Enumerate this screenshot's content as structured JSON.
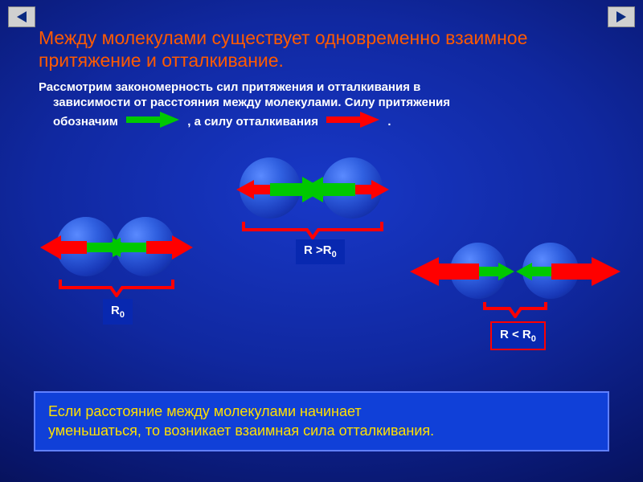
{
  "colors": {
    "title": "#ff5a00",
    "body_text": "#ffffff",
    "attraction": "#00c800",
    "repulsion": "#ff0000",
    "molecule_fill": "#2048d0",
    "bracket": "#ff0000",
    "label_bg": "#0828b0",
    "label_text": "#ffffff",
    "bottom_bg": "#1040d8",
    "bottom_text": "#ffe000"
  },
  "nav": {
    "prev": "Previous",
    "next": "Next"
  },
  "title": "Между молекулами существует одновременно взаимное притяжение и отталкивание.",
  "body": {
    "line1": "Рассмотрим закономерность сил притяжения и отталкивания в",
    "line2a": "зависимости от расстояния между молекулами. Силу притяжения",
    "line2b": "обозначим",
    "line2c": ", а силу отталкивания",
    "line2d": "."
  },
  "diagrams": {
    "case1": {
      "label": "R<sub>0</sub>"
    },
    "case2": {
      "label": "R >R<sub>0</sub>"
    },
    "case3": {
      "label": "R < R<sub>0</sub>"
    }
  },
  "bottom": "Если расстояние  между молекулами начинает\n уменьшаться, то возникает взаимная сила отталкивания."
}
